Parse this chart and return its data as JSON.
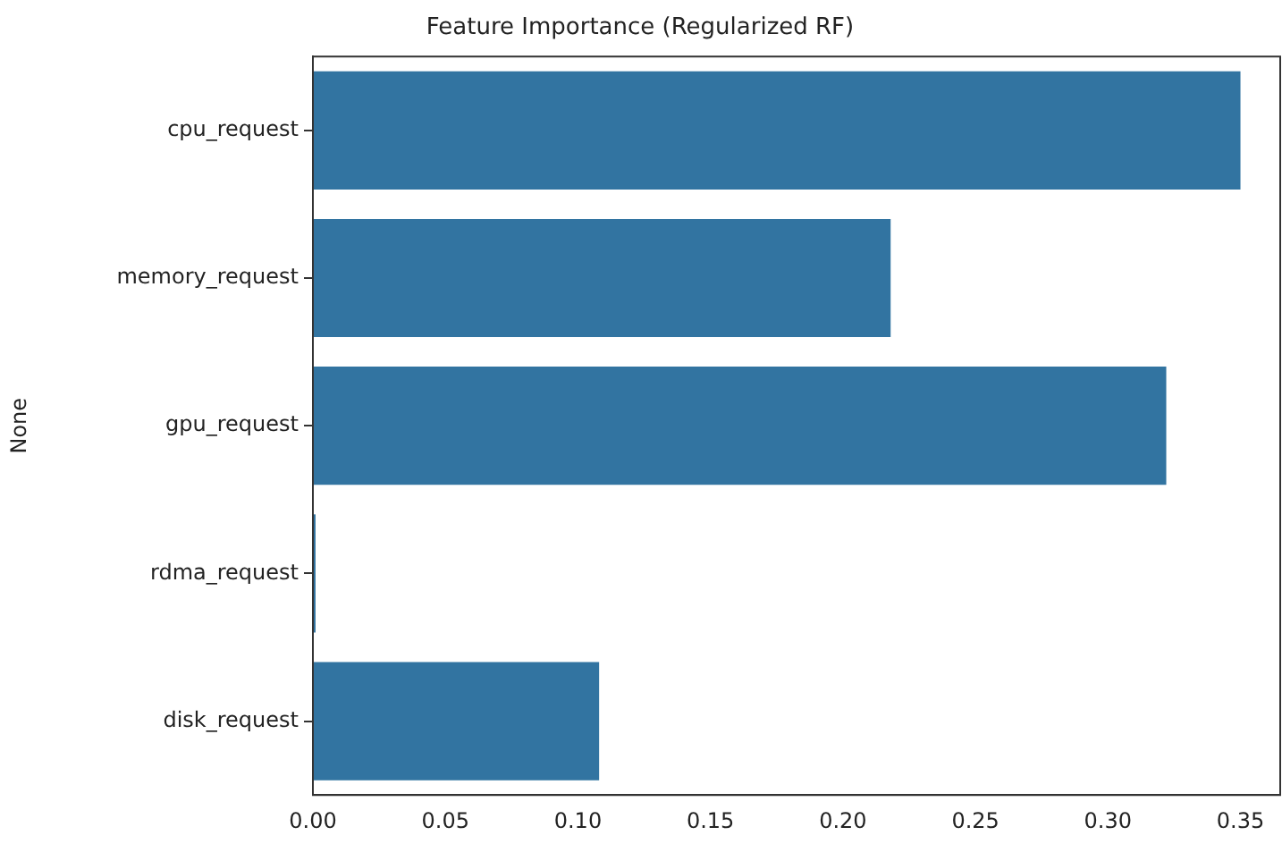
{
  "chart_data": {
    "type": "bar",
    "orientation": "horizontal",
    "title": "Feature Importance (Regularized RF)",
    "ylabel": "None",
    "categories": [
      "cpu_request",
      "memory_request",
      "gpu_request",
      "rdma_request",
      "disk_request"
    ],
    "values": [
      0.35,
      0.218,
      0.322,
      0.001,
      0.108
    ],
    "color": "#3274a1",
    "xlim": [
      0,
      0.365
    ],
    "xticks": [
      {
        "value": 0,
        "label": "0.00"
      },
      {
        "value": 0.05,
        "label": "0.05"
      },
      {
        "value": 0.1,
        "label": "0.10"
      },
      {
        "value": 0.15,
        "label": "0.15"
      },
      {
        "value": 0.2,
        "label": "0.20"
      },
      {
        "value": 0.25,
        "label": "0.25"
      },
      {
        "value": 0.3,
        "label": "0.30"
      },
      {
        "value": 0.35,
        "label": "0.35"
      }
    ],
    "grid": false,
    "legend": false
  }
}
